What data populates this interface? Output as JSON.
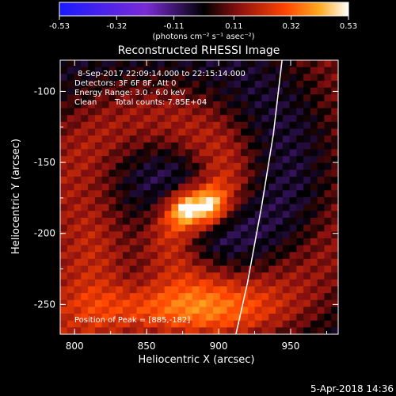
{
  "colorbar": {
    "ticks": [
      "-0.53",
      "-0.32",
      "-0.11",
      "0.11",
      "0.32",
      "0.53"
    ],
    "tick_values": [
      -0.53,
      -0.32,
      -0.11,
      0.11,
      0.32,
      0.53
    ],
    "range": [
      -0.53,
      0.53
    ],
    "units": "(photons cm⁻² s⁻¹ asec⁻²)",
    "colors": [
      "#1a1aff",
      "#7a2bd6",
      "#8a1010",
      "#ff4400",
      "#ffaa22",
      "#ffffff"
    ]
  },
  "chart_data": {
    "type": "heatmap",
    "title": "Reconstructed RHESSI Image",
    "xlabel": "Heliocentric X (arcsec)",
    "ylabel": "Heliocentric Y (arcsec)",
    "x_ticks": [
      "800",
      "850",
      "900",
      "950"
    ],
    "y_ticks": [
      "-100",
      "-150",
      "-200",
      "-250"
    ],
    "xlim": [
      790,
      983
    ],
    "ylim": [
      -271,
      -78
    ],
    "info_lines": [
      "8-Sep-2017 22:09:14.000 to 22:15:14.000",
      "Detectors: 3F 6F 8F, Att 0",
      "Energy Range: 3.0 - 6.0 keV"
    ],
    "clean_label": "Clean",
    "total_counts": "Total counts: 7.85E+04",
    "peak_label": "Position of Peak = [885,-182]",
    "peak": [
      885,
      -182
    ],
    "limb_points": [
      [
        944,
        -78
      ],
      [
        938,
        -130
      ],
      [
        930,
        -180
      ],
      [
        920,
        -235
      ],
      [
        912,
        -271
      ]
    ]
  },
  "footer": {
    "timestamp": "5-Apr-2018 14:36"
  }
}
